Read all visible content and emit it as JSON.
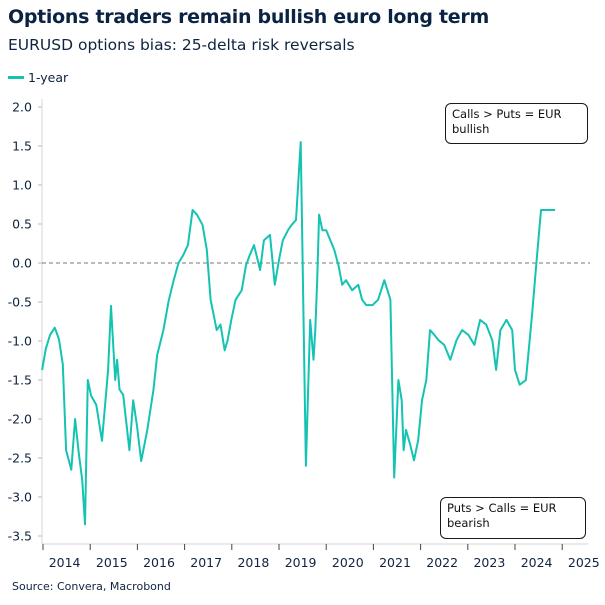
{
  "header": {
    "title": "Options traders remain bullish euro long term",
    "subtitle": "EURUSD options bias: 25-delta risk reversals"
  },
  "legend": {
    "items": [
      {
        "label": "1-year",
        "color": "#14c3b2"
      }
    ]
  },
  "annotations": {
    "bullish": "Calls > Puts = EUR bullish",
    "bearish": "Puts > Calls = EUR bearish"
  },
  "source": "Source: Convera, Macrobond",
  "chart_data": {
    "type": "line",
    "title": "Options traders remain bullish euro long term",
    "subtitle": "EURUSD options bias: 25-delta risk reversals",
    "xlabel": "",
    "ylabel": "",
    "xlim": [
      2014.0,
      2025.35
    ],
    "ylim": [
      -3.5,
      2.0
    ],
    "yticks": [
      "2.0",
      "1.5",
      "1.0",
      "0.5",
      "0.0",
      "-0.5",
      "-1.0",
      "-1.5",
      "-2.0",
      "-2.5",
      "-3.0",
      "-3.5"
    ],
    "ytick_values": [
      2.0,
      1.5,
      1.0,
      0.5,
      0.0,
      -0.5,
      -1.0,
      -1.5,
      -2.0,
      -2.5,
      -3.0,
      -3.5
    ],
    "xticks": [
      "2014",
      "2015",
      "2016",
      "2017",
      "2018",
      "2019",
      "2020",
      "2021",
      "2022",
      "2023",
      "2024",
      "2025"
    ],
    "reference_line": {
      "y": 0.0,
      "style": "dashed"
    },
    "grid": false,
    "legend_position": "top-left",
    "series": [
      {
        "name": "1-year",
        "color": "#14c3b2",
        "x": [
          2013.98,
          2014.06,
          2014.15,
          2014.25,
          2014.34,
          2014.42,
          2014.49,
          2014.6,
          2014.68,
          2014.76,
          2014.83,
          2014.89,
          2014.95,
          2015.02,
          2015.13,
          2015.25,
          2015.38,
          2015.44,
          2015.53,
          2015.57,
          2015.62,
          2015.7,
          2015.83,
          2015.91,
          2015.99,
          2016.08,
          2016.21,
          2016.34,
          2016.42,
          2016.55,
          2016.66,
          2016.76,
          2016.87,
          2016.97,
          2017.07,
          2017.17,
          2017.26,
          2017.38,
          2017.47,
          2017.55,
          2017.68,
          2017.76,
          2017.85,
          2017.91,
          2017.99,
          2018.08,
          2018.21,
          2018.3,
          2018.38,
          2018.47,
          2018.6,
          2018.68,
          2018.81,
          2018.91,
          2019.0,
          2019.08,
          2019.19,
          2019.27,
          2019.36,
          2019.46,
          2019.57,
          2019.66,
          2019.73,
          2019.77,
          2019.81,
          2019.85,
          2019.92,
          2020.0,
          2020.09,
          2020.17,
          2020.26,
          2020.34,
          2020.42,
          2020.55,
          2020.68,
          2020.76,
          2020.85,
          2020.98,
          2021.1,
          2021.23,
          2021.36,
          2021.44,
          2021.53,
          2021.6,
          2021.64,
          2021.69,
          2021.78,
          2021.86,
          2021.95,
          2022.03,
          2022.12,
          2022.2,
          2022.29,
          2022.38,
          2022.5,
          2022.63,
          2022.76,
          2022.88,
          2023.01,
          2023.14,
          2023.26,
          2023.39,
          2023.52,
          2023.6,
          2023.69,
          2023.82,
          2023.94,
          2024.0,
          2024.1,
          2024.23,
          2024.36,
          2024.44,
          2024.55,
          2024.63,
          2024.71,
          2024.8,
          2024.85
        ],
        "values": [
          -1.37,
          -1.1,
          -0.92,
          -0.83,
          -0.98,
          -1.3,
          -2.4,
          -2.65,
          -2.0,
          -2.45,
          -2.78,
          -3.35,
          -1.5,
          -1.7,
          -1.82,
          -2.28,
          -1.37,
          -0.55,
          -1.5,
          -1.24,
          -1.62,
          -1.69,
          -2.4,
          -1.76,
          -2.08,
          -2.54,
          -2.14,
          -1.63,
          -1.18,
          -0.86,
          -0.49,
          -0.24,
          0.0,
          0.1,
          0.23,
          0.68,
          0.62,
          0.49,
          0.17,
          -0.47,
          -0.86,
          -0.79,
          -1.12,
          -0.99,
          -0.73,
          -0.47,
          -0.35,
          -0.03,
          0.1,
          0.23,
          -0.09,
          0.29,
          0.36,
          -0.28,
          0.04,
          0.29,
          0.42,
          0.49,
          0.55,
          1.55,
          -2.6,
          -0.73,
          -1.24,
          -0.86,
          -0.22,
          0.62,
          0.42,
          0.42,
          0.29,
          0.17,
          -0.03,
          -0.28,
          -0.22,
          -0.35,
          -0.28,
          -0.47,
          -0.54,
          -0.54,
          -0.47,
          -0.22,
          -0.47,
          -2.75,
          -1.5,
          -1.76,
          -2.4,
          -2.14,
          -2.33,
          -2.53,
          -2.27,
          -1.76,
          -1.5,
          -0.86,
          -0.92,
          -0.99,
          -1.05,
          -1.24,
          -0.99,
          -0.86,
          -0.92,
          -1.05,
          -0.73,
          -0.79,
          -0.99,
          -1.37,
          -0.86,
          -0.73,
          -0.86,
          -1.37,
          -1.56,
          -1.5,
          -0.67,
          -0.09,
          0.68,
          0.68,
          0.68,
          0.68,
          0.68
        ]
      }
    ]
  }
}
